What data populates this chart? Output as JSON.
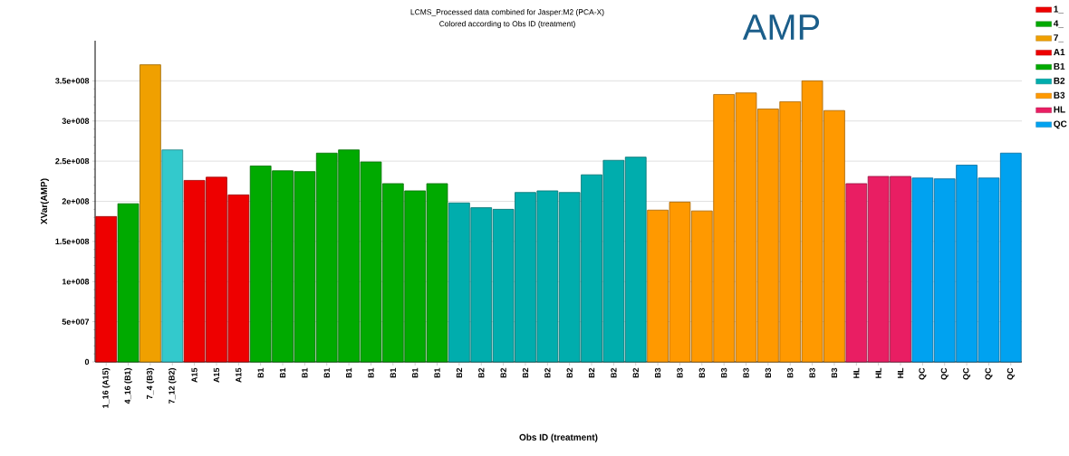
{
  "chart_data": {
    "type": "bar",
    "title": "AMP",
    "subtitle": "LCMS_Processed data combined for Jasper:M2 (PCA-X)",
    "annotations": [
      "Colored according to Obs ID (treatment)"
    ],
    "xlabel": "Obs ID (treatment)",
    "ylabel": "XVar(AMP)",
    "categories": [
      "1_16 (A15)",
      "4_16 (B1)",
      "7_4 (B3)",
      "7_12 (B2)",
      "A15",
      "A15",
      "A15",
      "B1",
      "B1",
      "B1",
      "B1",
      "B1",
      "B1",
      "B1",
      "B1",
      "B1",
      "B2",
      "B2",
      "B2",
      "B2",
      "B2",
      "B2",
      "B2",
      "B2",
      "B2",
      "B3",
      "B3",
      "B3",
      "B3",
      "B3",
      "B3",
      "B3",
      "B3",
      "B3",
      "HL",
      "HL",
      "HL",
      "QC",
      "QC",
      "QC",
      "QC",
      "QC"
    ],
    "series": [
      {
        "name": "1_",
        "color": "#ee0000",
        "values": [
          181000000,
          null,
          null,
          null,
          null,
          null,
          null,
          null,
          null,
          null,
          null,
          null,
          null,
          null,
          null,
          null,
          null,
          null,
          null,
          null,
          null,
          null,
          null,
          null,
          null,
          null,
          null,
          null,
          null,
          null,
          null,
          null,
          null,
          null,
          null,
          null,
          null,
          null,
          null,
          null,
          null,
          null
        ]
      },
      {
        "name": "4_",
        "color": "#00aa00",
        "values": [
          null,
          197000000,
          null,
          null,
          null,
          null,
          null,
          null,
          null,
          null,
          null,
          null,
          null,
          null,
          null,
          null,
          null,
          null,
          null,
          null,
          null,
          null,
          null,
          null,
          null,
          null,
          null,
          null,
          null,
          null,
          null,
          null,
          null,
          null,
          null,
          null,
          null,
          null,
          null,
          null,
          null,
          null
        ]
      },
      {
        "name": "7_",
        "color": "#f0a000",
        "values": [
          null,
          null,
          370000000,
          null,
          null,
          null,
          null,
          null,
          null,
          null,
          null,
          null,
          null,
          null,
          null,
          null,
          null,
          null,
          null,
          null,
          null,
          null,
          null,
          null,
          null,
          null,
          null,
          null,
          null,
          null,
          null,
          null,
          null,
          null,
          null,
          null,
          null,
          null,
          null,
          null,
          null,
          null
        ]
      },
      {
        "color": "#33c9cc",
        "values": [
          null,
          null,
          null,
          264000000,
          null,
          null,
          null,
          null,
          null,
          null,
          null,
          null,
          null,
          null,
          null,
          null,
          null,
          null,
          null,
          null,
          null,
          null,
          null,
          null,
          null,
          null,
          null,
          null,
          null,
          null,
          null,
          null,
          null,
          null,
          null,
          null,
          null,
          null,
          null,
          null,
          null,
          null
        ]
      },
      {
        "name": "A1",
        "color": "#ee0000",
        "values": [
          null,
          null,
          null,
          null,
          226000000,
          230000000,
          208000000,
          null,
          null,
          null,
          null,
          null,
          null,
          null,
          null,
          null,
          null,
          null,
          null,
          null,
          null,
          null,
          null,
          null,
          null,
          null,
          null,
          null,
          null,
          null,
          null,
          null,
          null,
          null,
          null,
          null,
          null,
          null,
          null,
          null,
          null,
          null
        ]
      },
      {
        "name": "B1",
        "color": "#00aa00",
        "values": [
          null,
          null,
          null,
          null,
          null,
          null,
          null,
          244000000,
          238000000,
          237000000,
          260000000,
          264000000,
          249000000,
          222000000,
          213000000,
          222000000,
          null,
          null,
          null,
          null,
          null,
          null,
          null,
          null,
          null,
          null,
          null,
          null,
          null,
          null,
          null,
          null,
          null,
          null,
          null,
          null,
          null,
          null,
          null,
          null,
          null,
          null
        ]
      },
      {
        "name": "B2",
        "color": "#00adad",
        "values": [
          null,
          null,
          null,
          null,
          null,
          null,
          null,
          null,
          null,
          null,
          null,
          null,
          null,
          null,
          null,
          null,
          198000000,
          192000000,
          190000000,
          211000000,
          213000000,
          211000000,
          233000000,
          251000000,
          255000000,
          null,
          null,
          null,
          null,
          null,
          null,
          null,
          null,
          null,
          null,
          null,
          null,
          null,
          null,
          null,
          null,
          null
        ]
      },
      {
        "name": "B3",
        "color": "#ff9900",
        "values": [
          null,
          null,
          null,
          null,
          null,
          null,
          null,
          null,
          null,
          null,
          null,
          null,
          null,
          null,
          null,
          null,
          null,
          null,
          null,
          null,
          null,
          null,
          null,
          null,
          null,
          189000000,
          199000000,
          188000000,
          333000000,
          335000000,
          315000000,
          324000000,
          350000000,
          313000000,
          null,
          null,
          null,
          null,
          null,
          null,
          null,
          null
        ]
      },
      {
        "name": "HL",
        "color": "#e91e63",
        "values": [
          null,
          null,
          null,
          null,
          null,
          null,
          null,
          null,
          null,
          null,
          null,
          null,
          null,
          null,
          null,
          null,
          null,
          null,
          null,
          null,
          null,
          null,
          null,
          null,
          null,
          null,
          null,
          null,
          null,
          null,
          null,
          null,
          null,
          null,
          222000000,
          231000000,
          231000000,
          null,
          null,
          null,
          null,
          null
        ]
      },
      {
        "name": "QC",
        "color": "#00a2f0",
        "values": [
          null,
          null,
          null,
          null,
          null,
          null,
          null,
          null,
          null,
          null,
          null,
          null,
          null,
          null,
          null,
          null,
          null,
          null,
          null,
          null,
          null,
          null,
          null,
          null,
          null,
          null,
          null,
          null,
          null,
          null,
          null,
          null,
          null,
          null,
          null,
          null,
          null,
          229000000,
          228000000,
          245000000,
          229000000,
          260000000
        ]
      }
    ],
    "ylim": [
      0,
      400000000
    ],
    "yticks": [
      0,
      {
        "value": 50000000,
        "label": "5e+007"
      },
      {
        "value": 100000000,
        "label": "1e+008"
      },
      {
        "value": 150000000,
        "label": "1.5e+008"
      },
      {
        "value": 200000000,
        "label": "2e+008"
      },
      {
        "value": 250000000,
        "label": "2.5e+008"
      },
      {
        "value": 300000000,
        "label": "3e+008"
      },
      {
        "value": 350000000,
        "label": "3.5e+008"
      }
    ],
    "grid": "y",
    "legend": "top right"
  }
}
